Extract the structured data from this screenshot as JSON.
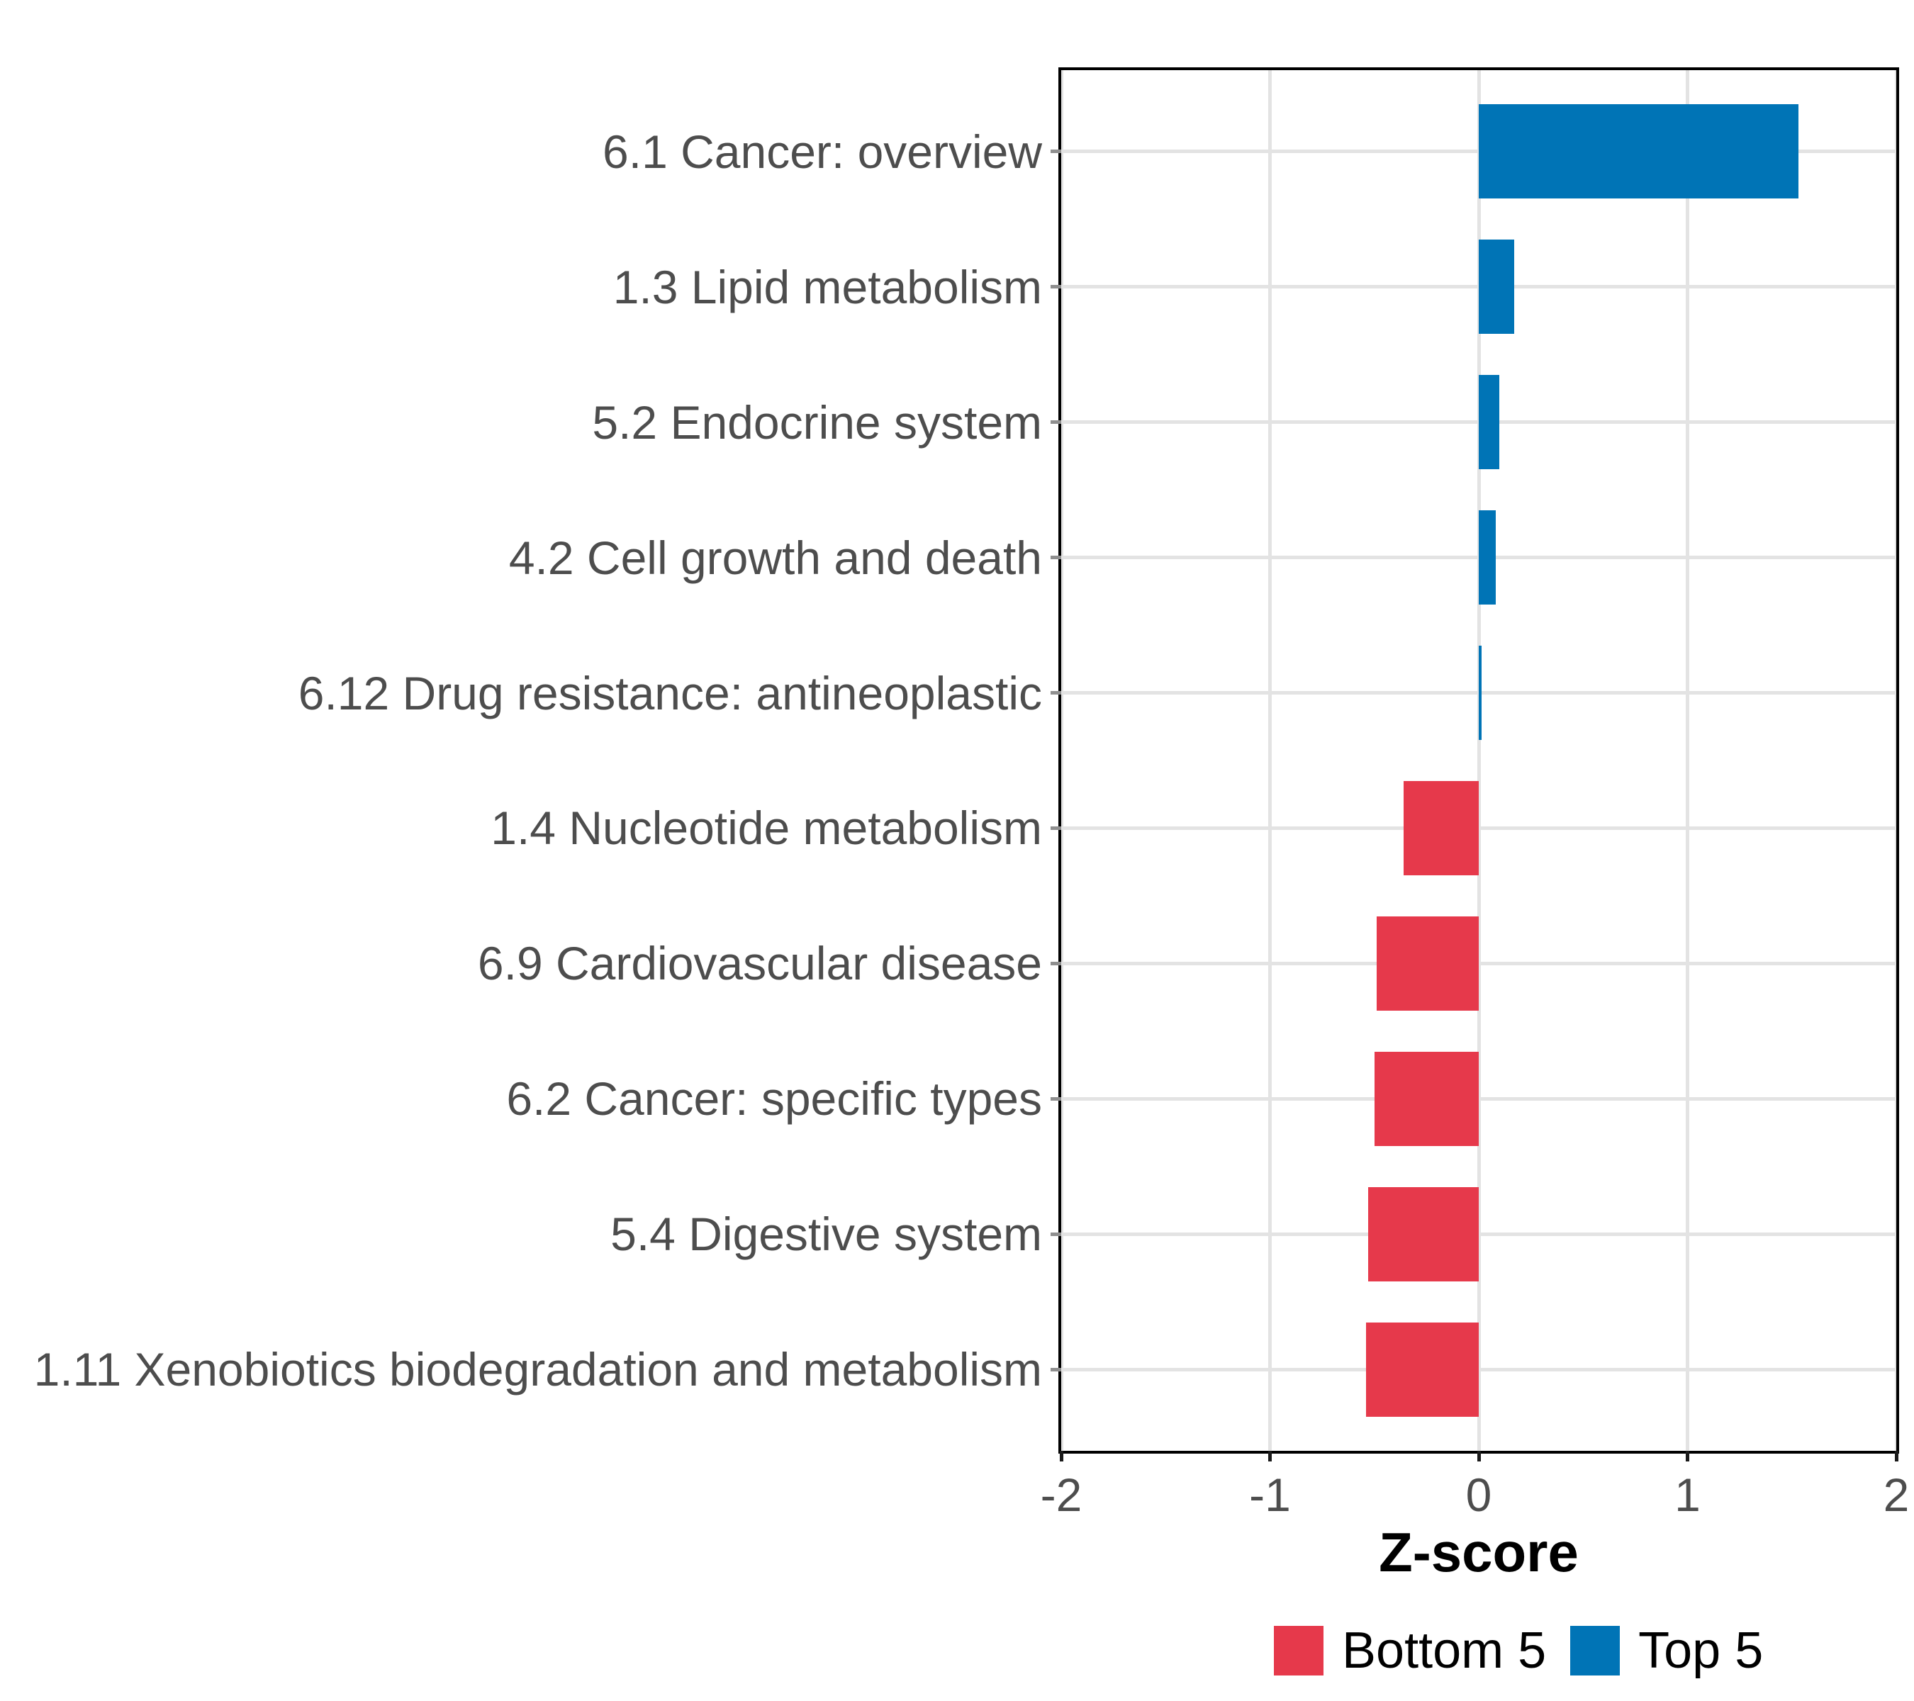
{
  "chart_data": {
    "type": "bar",
    "orientation": "horizontal",
    "title": "",
    "xlabel": "Z-score",
    "ylabel": "",
    "xlim": [
      -2,
      2
    ],
    "x_ticks": [
      "-2",
      "-1",
      "0",
      "1",
      "2"
    ],
    "x_tick_values": [
      -2,
      -1,
      0,
      1,
      2
    ],
    "grid": "major-only",
    "categories": [
      "6.1 Cancer: overview",
      "1.3 Lipid metabolism",
      "5.2 Endocrine system",
      "4.2 Cell growth and death",
      "6.12 Drug resistance: antineoplastic",
      "1.4 Nucleotide metabolism",
      "6.9 Cardiovascular disease",
      "6.2 Cancer: specific types",
      "5.4 Digestive system",
      "1.11 Xenobiotics biodegradation and metabolism"
    ],
    "values": [
      1.53,
      0.17,
      0.1,
      0.08,
      0.015,
      -0.36,
      -0.49,
      -0.5,
      -0.53,
      -0.54
    ],
    "groups": [
      "Top 5",
      "Top 5",
      "Top 5",
      "Top 5",
      "Top 5",
      "Bottom 5",
      "Bottom 5",
      "Bottom 5",
      "Bottom 5",
      "Bottom 5"
    ],
    "colors": {
      "Top 5": "#0074B6",
      "Bottom 5": "#E6394B"
    },
    "legend": {
      "position": "bottom",
      "entries": [
        {
          "label": "Bottom 5",
          "color": "#E6394B"
        },
        {
          "label": "Top 5",
          "color": "#0074B6"
        }
      ]
    },
    "style": {
      "panel_border_color": "#000000",
      "gridline_color": "#E3E3E3",
      "axis_text_color": "#4D4D4D",
      "axis_title_color": "#000000",
      "background_color": "#FFFFFF"
    }
  }
}
